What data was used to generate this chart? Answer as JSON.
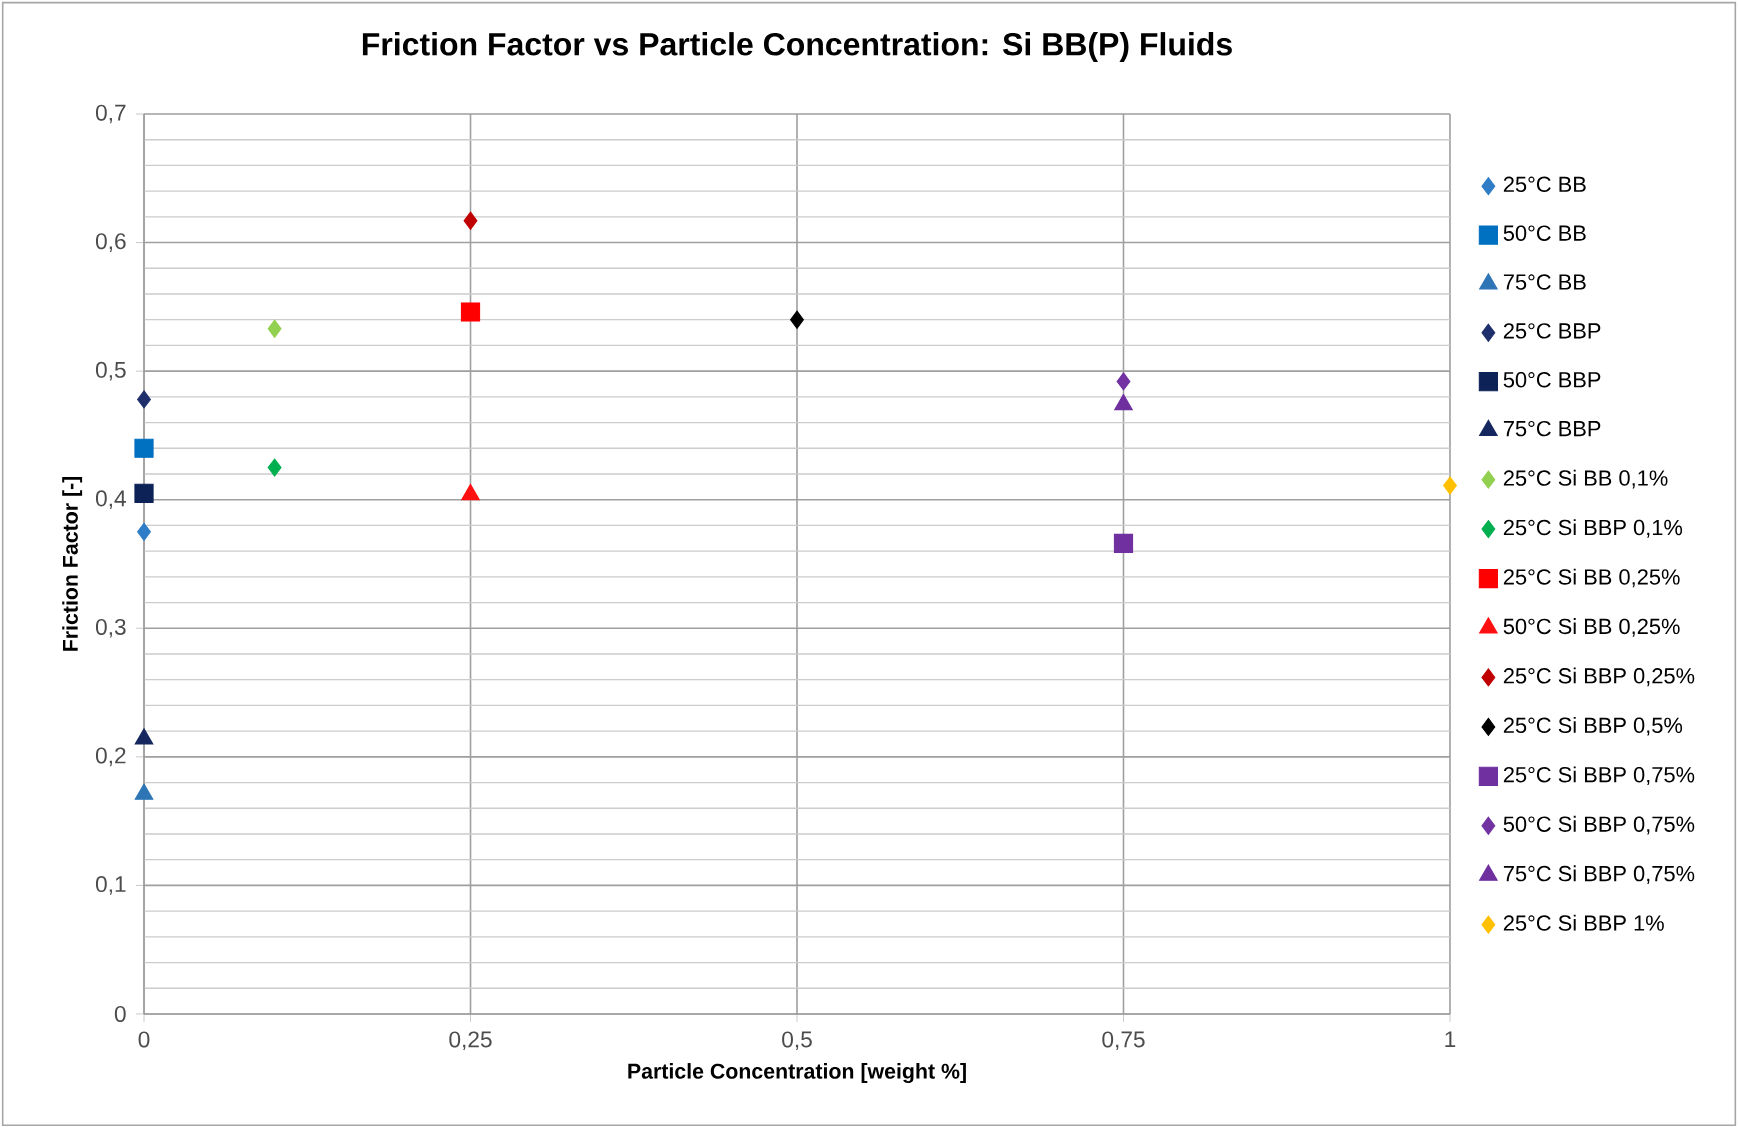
{
  "chart_data": {
    "type": "scatter",
    "title": "Friction Factor vs Particle Concentration: Si BB(P) Fluids",
    "xlabel": "Particle Concentration [weight %]",
    "ylabel": "Friction Factor [-]",
    "xlim": [
      0,
      1
    ],
    "ylim": [
      0,
      0.7
    ],
    "xticks": [
      0,
      {
        "value": 0.25,
        "label": "0,25"
      },
      {
        "value": 0.5,
        "label": "0,5"
      },
      {
        "value": 0.75,
        "label": "0,75"
      },
      1
    ],
    "yticks": [
      0,
      {
        "value": 0.1,
        "label": "0,1"
      },
      {
        "value": 0.2,
        "label": "0,2"
      },
      {
        "value": 0.3,
        "label": "0,3"
      },
      {
        "value": 0.4,
        "label": "0,4"
      },
      {
        "value": 0.5,
        "label": "0,5"
      },
      {
        "value": 0.6,
        "label": "0,6"
      },
      {
        "value": 0.7,
        "label": "0,7"
      }
    ],
    "grid": true,
    "legend": "right",
    "series": [
      {
        "name": "25°C BB",
        "color": "#2e7dc6",
        "marker": "diamond",
        "x": [
          0
        ],
        "values": [
          0.375
        ]
      },
      {
        "name": "50°C BB",
        "color": "#0070c0",
        "marker": "square",
        "x": [
          0
        ],
        "values": [
          0.44
        ]
      },
      {
        "name": "75°C BB",
        "color": "#2e75b6",
        "marker": "triangle",
        "x": [
          0
        ],
        "values": [
          0.171
        ]
      },
      {
        "name": "25°C BBP",
        "color": "#1f2f6b",
        "marker": "diamond",
        "x": [
          0
        ],
        "values": [
          0.478
        ]
      },
      {
        "name": "50°C BBP",
        "color": "#0d2357",
        "marker": "square",
        "x": [
          0
        ],
        "values": [
          0.405
        ]
      },
      {
        "name": "75°C BBP",
        "color": "#15275e",
        "marker": "triangle",
        "x": [
          0
        ],
        "values": [
          0.214
        ]
      },
      {
        "name": "25°C Si BB 0,1%",
        "color": "#92d050",
        "marker": "diamond",
        "x": [
          0.1
        ],
        "values": [
          0.533
        ]
      },
      {
        "name": "25°C Si BBP 0,1%",
        "color": "#00b050",
        "marker": "diamond",
        "x": [
          0.1
        ],
        "values": [
          0.425
        ]
      },
      {
        "name": "25°C Si BB 0,25%",
        "color": "#ff0000",
        "marker": "square",
        "x": [
          0.25
        ],
        "values": [
          0.546
        ]
      },
      {
        "name": "50°C Si BB 0,25%",
        "color": "#ff1010",
        "marker": "triangle",
        "x": [
          0.25
        ],
        "values": [
          0.404
        ]
      },
      {
        "name": "25°C Si BBP 0,25%",
        "color": "#c00000",
        "marker": "diamond",
        "x": [
          0.25
        ],
        "values": [
          0.617
        ]
      },
      {
        "name": "25°C Si BBP 0,5%",
        "color": "#000000",
        "marker": "diamond",
        "x": [
          0.5
        ],
        "values": [
          0.54
        ]
      },
      {
        "name": "25°C Si BBP 0,75%",
        "color": "#7030a0",
        "marker": "square",
        "x": [
          0.75
        ],
        "values": [
          0.366
        ]
      },
      {
        "name": "50°C Si BBP 0,75%",
        "color": "#7232a2",
        "marker": "diamond",
        "x": [
          0.75
        ],
        "values": [
          0.492
        ]
      },
      {
        "name": "75°C Si BBP 0,75%",
        "color": "#6f2f9f",
        "marker": "triangle",
        "x": [
          0.75
        ],
        "values": [
          0.474
        ]
      },
      {
        "name": "25°C Si BBP 1%",
        "color": "#ffc000",
        "marker": "diamond",
        "x": [
          1
        ],
        "values": [
          0.411
        ]
      }
    ]
  }
}
